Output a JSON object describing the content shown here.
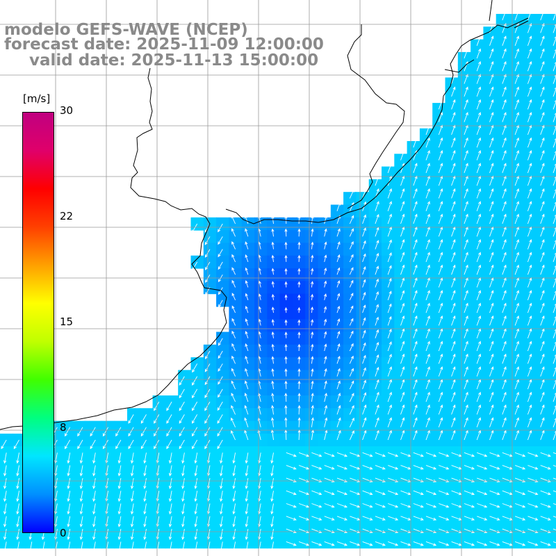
{
  "title": {
    "line1": "modelo GEFS-WAVE (NCEP)",
    "line2": "forecast date: 2025-11-09 12:00:00",
    "line3": "valid date: 2025-11-13 15:00:00"
  },
  "colorbar": {
    "unit": "[m/s]",
    "ticks": [
      "30",
      "22",
      "15",
      "8",
      "0"
    ],
    "min": 0,
    "max": 30,
    "colors": [
      "#0000ff",
      "#0090ff",
      "#00e6ff",
      "#00ff80",
      "#40ff00",
      "#c0ff00",
      "#ffff00",
      "#ffa000",
      "#ff4000",
      "#ff0000",
      "#e0006a",
      "#c00080"
    ]
  },
  "colors": {
    "land": "#ffffff",
    "grid": "#999999",
    "coastline": "#000000",
    "arrow": "#ffffff",
    "title": "#8a8a8a"
  },
  "map": {
    "field": "surface wind speed and direction",
    "speed_range_visible": [
      0,
      9
    ]
  }
}
